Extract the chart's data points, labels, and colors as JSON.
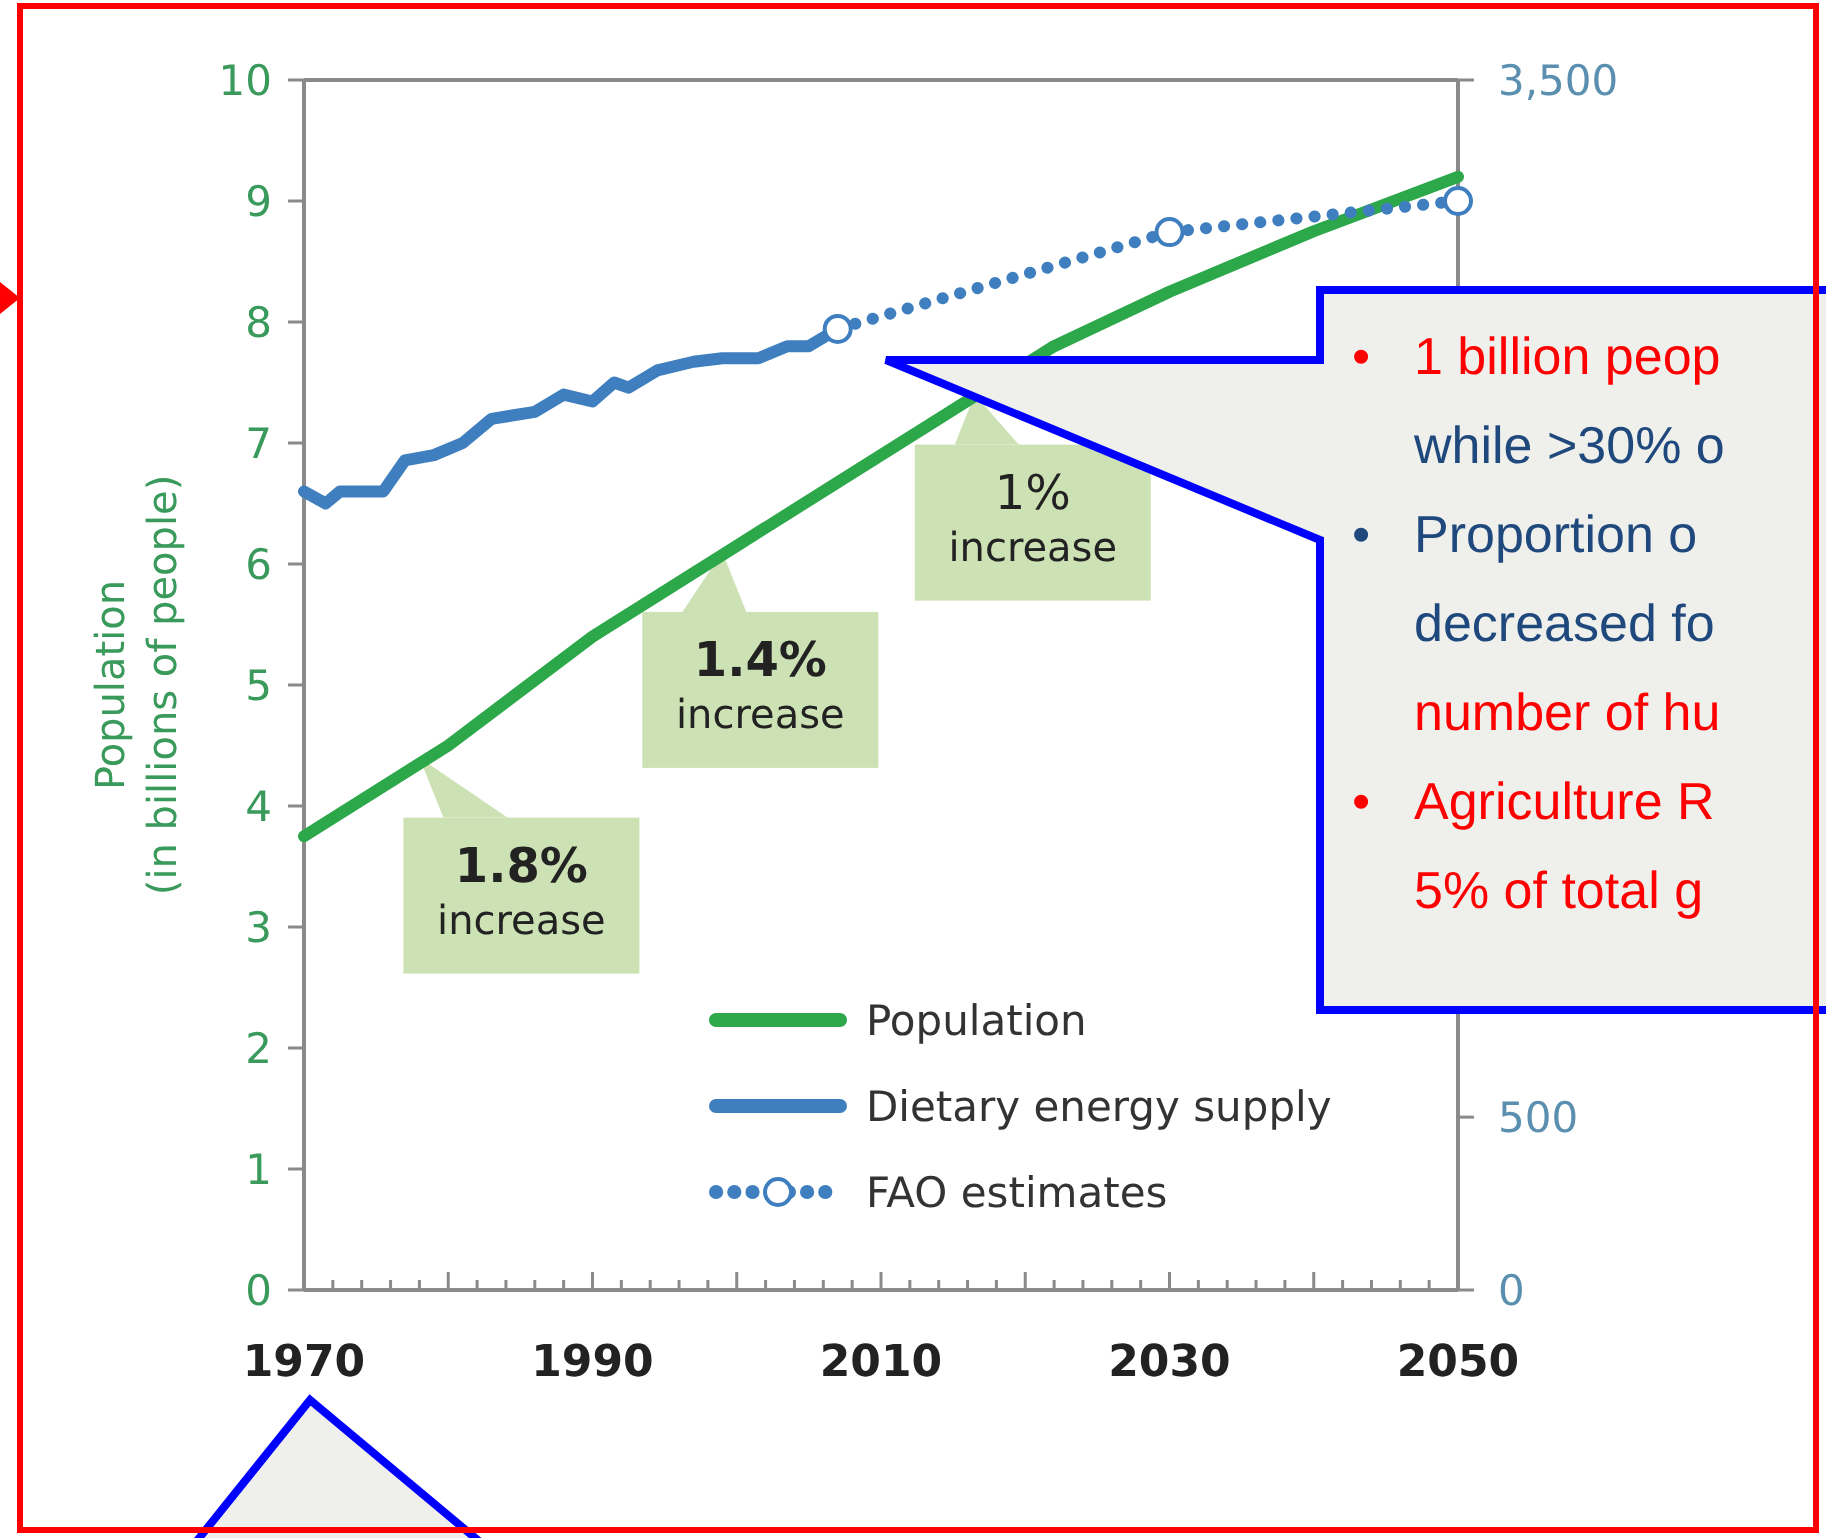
{
  "chart_data": {
    "type": "line",
    "ylabel": "Population\n(in billions of people)",
    "xlim": [
      1970,
      2050
    ],
    "xticks": [
      1970,
      {
        "value": 1972,
        "label": null
      },
      {
        "value": 1974,
        "label": null
      },
      {
        "value": 1976,
        "label": null
      },
      {
        "value": 1978,
        "label": null
      },
      {
        "value": 1980,
        "label": null
      },
      {
        "value": 1982,
        "label": null
      },
      {
        "value": 1984,
        "label": null
      },
      {
        "value": 1986,
        "label": null
      },
      {
        "value": 1988,
        "label": null
      },
      1990,
      {
        "value": 1992,
        "label": null
      },
      {
        "value": 1994,
        "label": null
      },
      {
        "value": 1996,
        "label": null
      },
      {
        "value": 1998,
        "label": null
      },
      {
        "value": 2000,
        "label": null
      },
      {
        "value": 2002,
        "label": null
      },
      {
        "value": 2004,
        "label": null
      },
      {
        "value": 2006,
        "label": null
      },
      {
        "value": 2008,
        "label": null
      },
      2010,
      {
        "value": 2012,
        "label": null
      },
      {
        "value": 2014,
        "label": null
      },
      {
        "value": 2016,
        "label": null
      },
      {
        "value": 2018,
        "label": null
      },
      {
        "value": 2020,
        "label": null
      },
      {
        "value": 2022,
        "label": null
      },
      {
        "value": 2024,
        "label": null
      },
      {
        "value": 2026,
        "label": null
      },
      {
        "value": 2028,
        "label": null
      },
      2030,
      {
        "value": 2032,
        "label": null
      },
      {
        "value": 2034,
        "label": null
      },
      {
        "value": 2036,
        "label": null
      },
      {
        "value": 2038,
        "label": null
      },
      {
        "value": 2040,
        "label": null
      },
      {
        "value": 2042,
        "label": null
      },
      {
        "value": 2044,
        "label": null
      },
      {
        "value": 2046,
        "label": null
      },
      {
        "value": 2048,
        "label": null
      },
      2050
    ],
    "ylim": [
      0,
      10
    ],
    "yticks": [
      0,
      1,
      2,
      3,
      4,
      5,
      6,
      7,
      8,
      9,
      10
    ],
    "y2lim": [
      0,
      3500
    ],
    "y2ticks": [
      0,
      {
        "value": 500,
        "label": "500"
      },
      {
        "value": 3500,
        "label": "3,500"
      }
    ],
    "legend": "bottom",
    "grid": false,
    "series": [
      {
        "name": "Population",
        "color": "#2ca84a",
        "x": [
          1970,
          1980,
          1990,
          2000,
          2010,
          2014,
          2022,
          2030,
          2040,
          2050
        ],
        "values": [
          3.75,
          4.5,
          5.4,
          6.15,
          6.9,
          7.2,
          7.8,
          8.25,
          8.75,
          9.2
        ]
      },
      {
        "name": "Dietary energy supply",
        "color": "#3f7fbf",
        "axis": "y2",
        "x": [
          1970,
          1971.5,
          1972.5,
          1974,
          1975.5,
          1977,
          1979,
          1981,
          1983,
          1986,
          1988,
          1990,
          1991.5,
          1992.5,
          1994.5,
          1997,
          1999,
          2001.5,
          2003.5,
          2005,
          2007
        ],
        "values": [
          2310,
          2275,
          2310,
          2310,
          2310,
          2400,
          2415,
          2450,
          2520,
          2540,
          2590,
          2570,
          2625,
          2610,
          2660,
          2685,
          2695,
          2695,
          2730,
          2730,
          2780
        ]
      },
      {
        "name": "FAO estimates",
        "color": "#3f7fbf",
        "axis": "y2",
        "line_style": "dotted",
        "marker": "circle",
        "x": [
          2007,
          2030,
          2050
        ],
        "values": [
          2780,
          3060,
          3150
        ]
      }
    ],
    "annotations": [
      {
        "text": "1.8%\nincrease",
        "x": 1978,
        "y": 4.4
      },
      {
        "text": "1.4%\nincrease",
        "x": 1999,
        "y": 6.1
      },
      {
        "text": "1%\nincrease",
        "x": 2016.5,
        "y": 7.4
      },
      "• 1 billion peop",
      "while >30% o",
      "• Proportion o",
      "decreased fo",
      "number of hu",
      "• Agriculture R",
      "5% of total g"
    ]
  }
}
